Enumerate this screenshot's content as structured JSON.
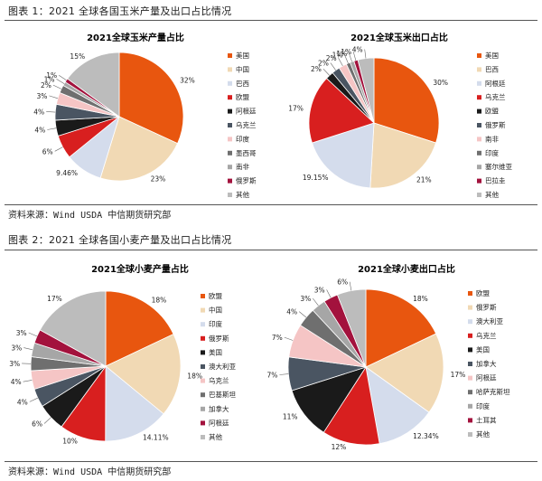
{
  "figure1": {
    "title": "图表 1：2021 全球各国玉米产量及出口占比情况",
    "source": "资料来源：Wind USDA 中信期货研究部"
  },
  "figure2": {
    "title": "图表 2：2021 全球各国小麦产量及出口占比情况",
    "source": "资料来源：Wind USDA 中信期货研究部"
  },
  "chart_data": [
    {
      "type": "pie",
      "title": "2021全球玉米产量占比",
      "categories": [
        "美国",
        "中国",
        "巴西",
        "欧盟",
        "阿根廷",
        "乌克兰",
        "印度",
        "墨西哥",
        "南非",
        "俄罗斯",
        "其他"
      ],
      "values": [
        32,
        23,
        9.46,
        6,
        4,
        4,
        3,
        2,
        1,
        1,
        15
      ],
      "labels": [
        "32%",
        "23%",
        "9.46%",
        "6%",
        "4%",
        "4%",
        "3%",
        "2%",
        "1%",
        "1%",
        "15%"
      ],
      "colors": [
        "#e8560f",
        "#f1d9b4",
        "#d4dcec",
        "#d81f1f",
        "#1a1a1a",
        "#4a5562",
        "#f5c5c5",
        "#6f6f6f",
        "#a6a6a6",
        "#a3123d",
        "#bcbcbc"
      ],
      "legend_position": "right"
    },
    {
      "type": "pie",
      "title": "2021全球玉米出口占比",
      "categories": [
        "美国",
        "巴西",
        "阿根廷",
        "乌克兰",
        "欧盟",
        "俄罗斯",
        "南非",
        "印度",
        "塞尔维亚",
        "巴拉圭",
        "其他"
      ],
      "values": [
        30,
        21,
        19.15,
        17,
        2,
        2,
        2,
        1,
        1,
        1,
        4
      ],
      "labels": [
        "30%",
        "21%",
        "19.15%",
        "17%",
        "2%",
        "2%",
        "2%",
        "1%",
        "1%",
        "1%",
        "4%"
      ],
      "colors": [
        "#e8560f",
        "#f1d9b4",
        "#d4dcec",
        "#d81f1f",
        "#1a1a1a",
        "#4a5562",
        "#f5c5c5",
        "#6f6f6f",
        "#a6a6a6",
        "#a3123d",
        "#bcbcbc"
      ],
      "legend_position": "right"
    },
    {
      "type": "pie",
      "title": "2021全球小麦产量占比",
      "categories": [
        "欧盟",
        "中国",
        "印度",
        "俄罗斯",
        "美国",
        "澳大利亚",
        "乌克兰",
        "巴基斯坦",
        "加拿大",
        "阿根廷",
        "其他"
      ],
      "values": [
        18,
        18,
        14.11,
        10,
        6,
        4,
        4,
        3,
        3,
        3,
        17
      ],
      "labels": [
        "18%",
        "18%",
        "14.11%",
        "10%",
        "6%",
        "4%",
        "4%",
        "3%",
        "3%",
        "3%",
        "17%"
      ],
      "colors": [
        "#e8560f",
        "#f1d9b4",
        "#d4dcec",
        "#d81f1f",
        "#1a1a1a",
        "#4a5562",
        "#f5c5c5",
        "#6f6f6f",
        "#a6a6a6",
        "#a3123d",
        "#bcbcbc"
      ],
      "legend_position": "right"
    },
    {
      "type": "pie",
      "title": "2021全球小麦出口占比",
      "categories": [
        "欧盟",
        "俄罗斯",
        "澳大利亚",
        "乌克兰",
        "美国",
        "加拿大",
        "阿根廷",
        "哈萨克斯坦",
        "印度",
        "土耳其",
        "其他"
      ],
      "values": [
        18,
        17,
        12.34,
        12,
        11,
        7,
        7,
        4,
        3,
        3,
        6
      ],
      "labels": [
        "18%",
        "17%",
        "12.34%",
        "12%",
        "11%",
        "7%",
        "7%",
        "4%",
        "3%",
        "3%",
        "6%"
      ],
      "colors": [
        "#e8560f",
        "#f1d9b4",
        "#d4dcec",
        "#d81f1f",
        "#1a1a1a",
        "#4a5562",
        "#f5c5c5",
        "#6f6f6f",
        "#a6a6a6",
        "#a3123d",
        "#bcbcbc"
      ],
      "legend_position": "right"
    }
  ]
}
